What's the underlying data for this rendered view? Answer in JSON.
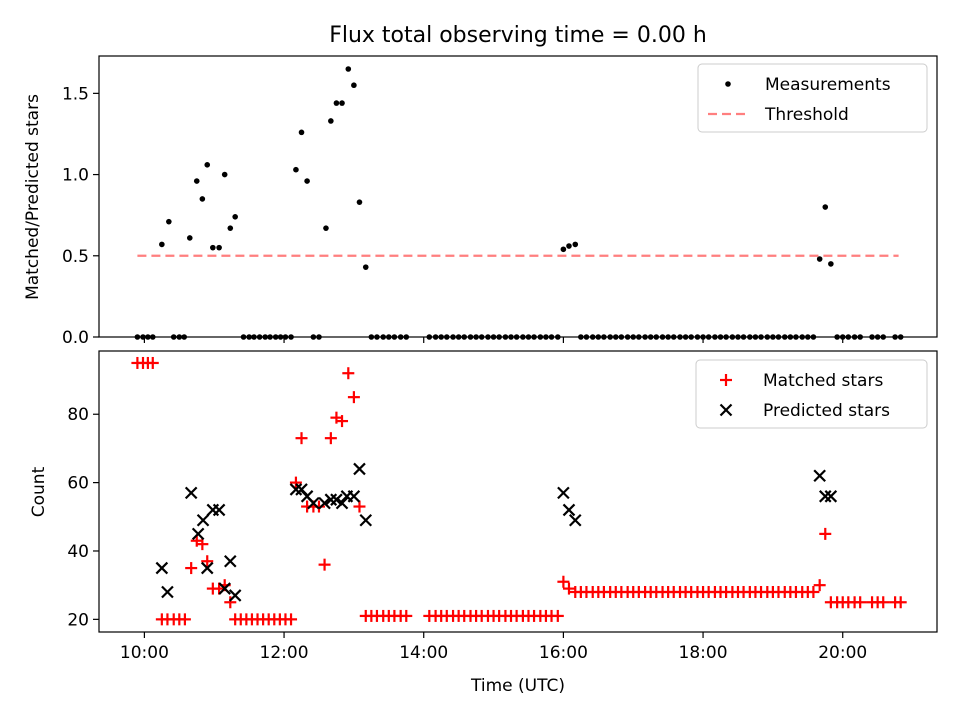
{
  "figure": {
    "title": "Flux total observing time = 0.00 h",
    "xlabel": "Time (UTC)",
    "colors": {
      "measurements": "#000000",
      "threshold": "#ff7f7f",
      "matched": "#ff0000",
      "predicted": "#000000",
      "axes": "#000000"
    }
  },
  "chart_data": [
    {
      "type": "scatter",
      "title": "Flux total observing time = 0.00 h",
      "xlabel": "",
      "ylabel": "Matched/Predicted stars",
      "xlim": [
        9.35,
        21.35
      ],
      "ylim": [
        0,
        1.73
      ],
      "yticks": [
        0.0,
        0.5,
        1.0,
        1.5
      ],
      "ytick_labels": [
        "0.0",
        "0.5",
        "1.0",
        "1.5"
      ],
      "legend_position": "top-right",
      "legend": [
        {
          "name": "Measurements",
          "marker": "dot"
        },
        {
          "name": "Threshold",
          "marker": "dashed-line"
        }
      ],
      "threshold": {
        "value": 0.5,
        "x_start": 9.9,
        "x_end": 20.8
      },
      "measurements": [
        [
          9.9,
          0
        ],
        [
          9.98,
          0
        ],
        [
          10.05,
          0
        ],
        [
          10.12,
          0
        ],
        [
          10.25,
          0.57
        ],
        [
          10.35,
          0.71
        ],
        [
          10.42,
          0
        ],
        [
          10.5,
          0
        ],
        [
          10.57,
          0
        ],
        [
          10.65,
          0.61
        ],
        [
          10.75,
          0.96
        ],
        [
          10.83,
          0.85
        ],
        [
          10.9,
          1.06
        ],
        [
          10.98,
          0.55
        ],
        [
          11.07,
          0.55
        ],
        [
          11.15,
          1.0
        ],
        [
          11.23,
          0.67
        ],
        [
          11.3,
          0.74
        ],
        [
          11.42,
          0
        ],
        [
          11.5,
          0
        ],
        [
          11.57,
          0
        ],
        [
          11.65,
          0
        ],
        [
          11.73,
          0
        ],
        [
          11.8,
          0
        ],
        [
          11.88,
          0
        ],
        [
          11.95,
          0
        ],
        [
          12.02,
          0
        ],
        [
          12.1,
          0
        ],
        [
          12.17,
          1.03
        ],
        [
          12.25,
          1.26
        ],
        [
          12.33,
          0.96
        ],
        [
          12.42,
          0
        ],
        [
          12.5,
          0
        ],
        [
          12.6,
          0.67
        ],
        [
          12.67,
          1.33
        ],
        [
          12.75,
          1.44
        ],
        [
          12.83,
          1.44
        ],
        [
          12.92,
          1.65
        ],
        [
          13.0,
          1.55
        ],
        [
          13.08,
          0.83
        ],
        [
          13.17,
          0.43
        ],
        [
          13.25,
          0
        ],
        [
          13.33,
          0
        ],
        [
          13.42,
          0
        ],
        [
          13.5,
          0
        ],
        [
          13.58,
          0
        ],
        [
          13.67,
          0
        ],
        [
          13.75,
          0
        ],
        [
          14.08,
          0
        ],
        [
          14.17,
          0
        ],
        [
          14.25,
          0
        ],
        [
          14.33,
          0
        ],
        [
          14.42,
          0
        ],
        [
          14.5,
          0
        ],
        [
          14.58,
          0
        ],
        [
          14.67,
          0
        ],
        [
          14.75,
          0
        ],
        [
          14.83,
          0
        ],
        [
          14.92,
          0
        ],
        [
          15.0,
          0
        ],
        [
          15.08,
          0
        ],
        [
          15.17,
          0
        ],
        [
          15.25,
          0
        ],
        [
          15.33,
          0
        ],
        [
          15.42,
          0
        ],
        [
          15.5,
          0
        ],
        [
          15.58,
          0
        ],
        [
          15.67,
          0
        ],
        [
          15.75,
          0
        ],
        [
          15.83,
          0
        ],
        [
          15.92,
          0
        ],
        [
          16.0,
          0.54
        ],
        [
          16.08,
          0.56
        ],
        [
          16.17,
          0.57
        ],
        [
          16.25,
          0
        ],
        [
          16.33,
          0
        ],
        [
          16.42,
          0
        ],
        [
          16.5,
          0
        ],
        [
          16.58,
          0
        ],
        [
          16.67,
          0
        ],
        [
          16.75,
          0
        ],
        [
          16.83,
          0
        ],
        [
          16.92,
          0
        ],
        [
          17.0,
          0
        ],
        [
          17.08,
          0
        ],
        [
          17.17,
          0
        ],
        [
          17.25,
          0
        ],
        [
          17.33,
          0
        ],
        [
          17.42,
          0
        ],
        [
          17.5,
          0
        ],
        [
          17.58,
          0
        ],
        [
          17.67,
          0
        ],
        [
          17.75,
          0
        ],
        [
          17.83,
          0
        ],
        [
          17.92,
          0
        ],
        [
          18.0,
          0
        ],
        [
          18.08,
          0
        ],
        [
          18.17,
          0
        ],
        [
          18.25,
          0
        ],
        [
          18.33,
          0
        ],
        [
          18.42,
          0
        ],
        [
          18.5,
          0
        ],
        [
          18.58,
          0
        ],
        [
          18.67,
          0
        ],
        [
          18.75,
          0
        ],
        [
          18.83,
          0
        ],
        [
          18.92,
          0
        ],
        [
          19.0,
          0
        ],
        [
          19.08,
          0
        ],
        [
          19.17,
          0
        ],
        [
          19.25,
          0
        ],
        [
          19.33,
          0
        ],
        [
          19.42,
          0
        ],
        [
          19.5,
          0
        ],
        [
          19.58,
          0
        ],
        [
          19.67,
          0.48
        ],
        [
          19.75,
          0.8
        ],
        [
          19.83,
          0.45
        ],
        [
          19.92,
          0
        ],
        [
          20.0,
          0
        ],
        [
          20.08,
          0
        ],
        [
          20.17,
          0
        ],
        [
          20.25,
          0
        ],
        [
          20.42,
          0
        ],
        [
          20.5,
          0
        ],
        [
          20.58,
          0
        ],
        [
          20.75,
          0
        ],
        [
          20.83,
          0
        ]
      ]
    },
    {
      "type": "scatter",
      "xlabel": "Time (UTC)",
      "ylabel": "Count",
      "xlim": [
        9.35,
        21.35
      ],
      "ylim": [
        16.3,
        98.5
      ],
      "yticks": [
        20,
        40,
        60,
        80
      ],
      "ytick_labels": [
        "20",
        "40",
        "60",
        "80"
      ],
      "xticks": [
        10,
        12,
        14,
        16,
        18,
        20
      ],
      "xtick_labels": [
        "10:00",
        "12:00",
        "14:00",
        "16:00",
        "18:00",
        "20:00"
      ],
      "legend_position": "top-right",
      "legend": [
        {
          "name": "Matched stars",
          "marker": "plus"
        },
        {
          "name": "Predicted stars",
          "marker": "x"
        }
      ],
      "series": [
        {
          "name": "Matched stars",
          "points": [
            [
              9.9,
              95
            ],
            [
              9.98,
              95
            ],
            [
              10.05,
              95
            ],
            [
              10.12,
              95
            ],
            [
              10.25,
              20
            ],
            [
              10.33,
              20
            ],
            [
              10.42,
              20
            ],
            [
              10.5,
              20
            ],
            [
              10.58,
              20
            ],
            [
              10.67,
              35
            ],
            [
              10.75,
              43
            ],
            [
              10.83,
              42
            ],
            [
              10.9,
              37
            ],
            [
              10.98,
              29
            ],
            [
              11.07,
              29
            ],
            [
              11.15,
              30
            ],
            [
              11.23,
              25
            ],
            [
              11.3,
              20
            ],
            [
              11.38,
              20
            ],
            [
              11.46,
              20
            ],
            [
              11.54,
              20
            ],
            [
              11.62,
              20
            ],
            [
              11.7,
              20
            ],
            [
              11.78,
              20
            ],
            [
              11.86,
              20
            ],
            [
              11.94,
              20
            ],
            [
              12.02,
              20
            ],
            [
              12.1,
              20
            ],
            [
              12.17,
              60
            ],
            [
              12.25,
              73
            ],
            [
              12.33,
              53
            ],
            [
              12.42,
              53
            ],
            [
              12.5,
              53
            ],
            [
              12.58,
              36
            ],
            [
              12.67,
              73
            ],
            [
              12.75,
              79
            ],
            [
              12.83,
              78
            ],
            [
              12.92,
              92
            ],
            [
              13.0,
              85
            ],
            [
              13.08,
              53
            ],
            [
              13.17,
              21
            ],
            [
              13.25,
              21
            ],
            [
              13.33,
              21
            ],
            [
              13.42,
              21
            ],
            [
              13.5,
              21
            ],
            [
              13.58,
              21
            ],
            [
              13.67,
              21
            ],
            [
              13.75,
              21
            ],
            [
              14.08,
              21
            ],
            [
              14.17,
              21
            ],
            [
              14.25,
              21
            ],
            [
              14.33,
              21
            ],
            [
              14.42,
              21
            ],
            [
              14.5,
              21
            ],
            [
              14.58,
              21
            ],
            [
              14.67,
              21
            ],
            [
              14.75,
              21
            ],
            [
              14.83,
              21
            ],
            [
              14.92,
              21
            ],
            [
              15.0,
              21
            ],
            [
              15.08,
              21
            ],
            [
              15.17,
              21
            ],
            [
              15.25,
              21
            ],
            [
              15.33,
              21
            ],
            [
              15.42,
              21
            ],
            [
              15.5,
              21
            ],
            [
              15.58,
              21
            ],
            [
              15.67,
              21
            ],
            [
              15.75,
              21
            ],
            [
              15.83,
              21
            ],
            [
              15.92,
              21
            ],
            [
              16.0,
              31
            ],
            [
              16.08,
              29
            ],
            [
              16.17,
              28
            ],
            [
              16.25,
              28
            ],
            [
              16.33,
              28
            ],
            [
              16.42,
              28
            ],
            [
              16.5,
              28
            ],
            [
              16.58,
              28
            ],
            [
              16.67,
              28
            ],
            [
              16.75,
              28
            ],
            [
              16.83,
              28
            ],
            [
              16.92,
              28
            ],
            [
              17.0,
              28
            ],
            [
              17.08,
              28
            ],
            [
              17.17,
              28
            ],
            [
              17.25,
              28
            ],
            [
              17.33,
              28
            ],
            [
              17.42,
              28
            ],
            [
              17.5,
              28
            ],
            [
              17.58,
              28
            ],
            [
              17.67,
              28
            ],
            [
              17.75,
              28
            ],
            [
              17.83,
              28
            ],
            [
              17.92,
              28
            ],
            [
              18.0,
              28
            ],
            [
              18.08,
              28
            ],
            [
              18.17,
              28
            ],
            [
              18.25,
              28
            ],
            [
              18.33,
              28
            ],
            [
              18.42,
              28
            ],
            [
              18.5,
              28
            ],
            [
              18.58,
              28
            ],
            [
              18.67,
              28
            ],
            [
              18.75,
              28
            ],
            [
              18.83,
              28
            ],
            [
              18.92,
              28
            ],
            [
              19.0,
              28
            ],
            [
              19.08,
              28
            ],
            [
              19.17,
              28
            ],
            [
              19.25,
              28
            ],
            [
              19.33,
              28
            ],
            [
              19.42,
              28
            ],
            [
              19.5,
              28
            ],
            [
              19.58,
              28
            ],
            [
              19.67,
              30
            ],
            [
              19.75,
              45
            ],
            [
              19.83,
              25
            ],
            [
              19.92,
              25
            ],
            [
              20.0,
              25
            ],
            [
              20.08,
              25
            ],
            [
              20.17,
              25
            ],
            [
              20.25,
              25
            ],
            [
              20.42,
              25
            ],
            [
              20.5,
              25
            ],
            [
              20.58,
              25
            ],
            [
              20.75,
              25
            ],
            [
              20.83,
              25
            ]
          ]
        },
        {
          "name": "Predicted stars",
          "points": [
            [
              10.25,
              35
            ],
            [
              10.33,
              28
            ],
            [
              10.67,
              57
            ],
            [
              10.77,
              45
            ],
            [
              10.84,
              49
            ],
            [
              10.9,
              35
            ],
            [
              10.98,
              52
            ],
            [
              11.07,
              52
            ],
            [
              11.15,
              29
            ],
            [
              11.23,
              37
            ],
            [
              11.3,
              27
            ],
            [
              12.17,
              58
            ],
            [
              12.25,
              58
            ],
            [
              12.33,
              56
            ],
            [
              12.42,
              54
            ],
            [
              12.58,
              54
            ],
            [
              12.67,
              55
            ],
            [
              12.75,
              55
            ],
            [
              12.83,
              54
            ],
            [
              12.9,
              56
            ],
            [
              13.0,
              56
            ],
            [
              13.08,
              64
            ],
            [
              13.17,
              49
            ],
            [
              16.0,
              57
            ],
            [
              16.08,
              52
            ],
            [
              16.17,
              49
            ],
            [
              19.67,
              62
            ],
            [
              19.75,
              56
            ],
            [
              19.83,
              56
            ]
          ]
        }
      ]
    }
  ]
}
